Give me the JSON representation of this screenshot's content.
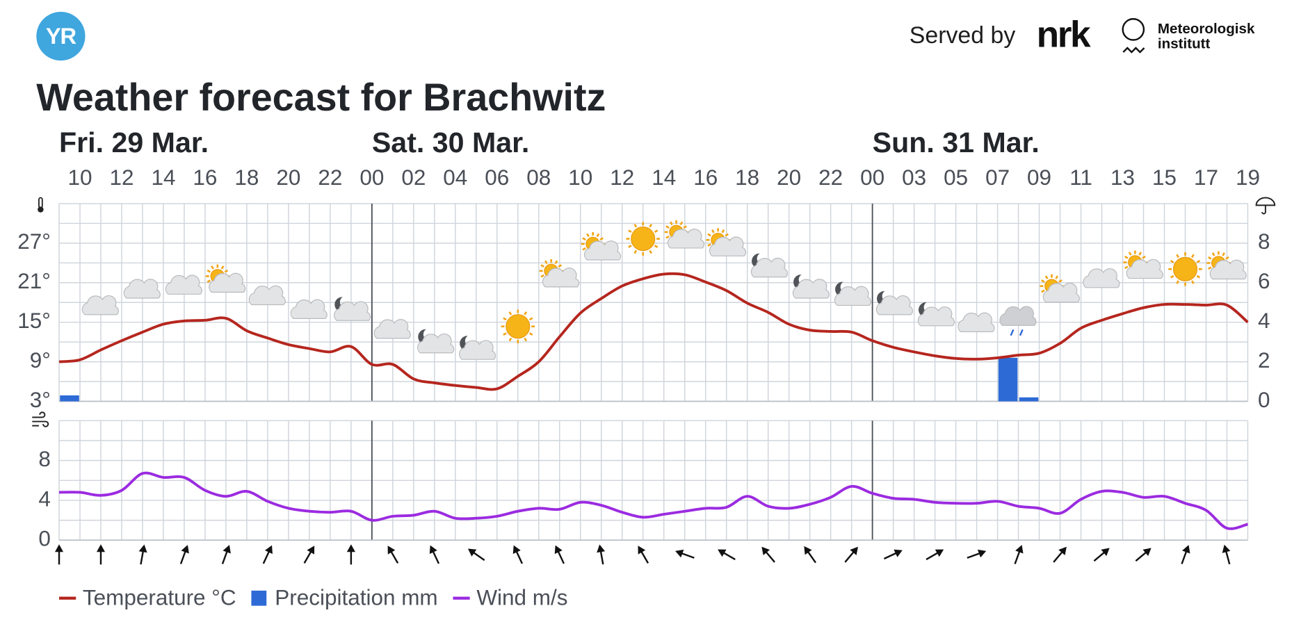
{
  "header": {
    "logo": "YR",
    "served_by": "Served by",
    "nrk": "nrk",
    "met": [
      "Meteorologisk",
      "institutt"
    ]
  },
  "chart_data": [
    {
      "type": "line",
      "title": "Weather forecast for Brachwitz",
      "days": [
        "Fri. 29 Mar.",
        "Sat. 30 Mar.",
        "Sun. 31 Mar."
      ],
      "categories": [
        null,
        "10",
        null,
        "12",
        null,
        "14",
        null,
        "16",
        null,
        "18",
        null,
        "20",
        null,
        "22",
        null,
        "00",
        null,
        "02",
        null,
        "04",
        null,
        "06",
        null,
        "08",
        null,
        "10",
        null,
        "12",
        null,
        "14",
        null,
        "16",
        null,
        "18",
        null,
        "20",
        null,
        "22",
        null,
        "00",
        null,
        "03",
        null,
        "05",
        null,
        "07",
        null,
        "09",
        null,
        "11",
        null,
        "13",
        null,
        "15",
        null,
        "17",
        null,
        "19"
      ],
      "ylim": [
        3,
        33
      ],
      "yticks": [
        {
          "value": 3,
          "label": "3°"
        },
        {
          "value": 9,
          "label": "9°"
        },
        {
          "value": 15,
          "label": "15°"
        },
        {
          "value": 21,
          "label": "21°"
        },
        {
          "value": 27,
          "label": "27°"
        }
      ],
      "minor_grid": [
        6,
        12,
        18,
        24,
        30
      ],
      "y2lim": [
        0,
        10
      ],
      "y2ticks": [
        0,
        2,
        4,
        6,
        8
      ],
      "grid": true,
      "series": [
        {
          "name": "Temperature °C",
          "color": "#b5261e",
          "values": [
            9.0,
            9.3,
            10.8,
            12.2,
            13.5,
            14.7,
            15.2,
            15.3,
            15.6,
            13.7,
            12.6,
            11.6,
            11.0,
            10.5,
            11.3,
            8.6,
            8.6,
            6.4,
            5.8,
            5.4,
            5.1,
            4.9,
            6.8,
            9.0,
            12.8,
            16.4,
            18.6,
            20.5,
            21.6,
            22.3,
            22.2,
            21.1,
            19.8,
            17.9,
            16.5,
            14.7,
            13.8,
            13.6,
            13.5,
            12.2,
            11.2,
            10.5,
            9.9,
            9.5,
            9.4,
            9.6,
            10.0,
            10.3,
            11.8,
            14.1,
            15.3,
            16.3,
            17.2,
            17.7,
            17.7,
            17.6,
            17.6,
            15.0
          ]
        },
        {
          "name": "Precipitation mm",
          "color": "#2d6ad6",
          "type": "bar",
          "axis": "y2",
          "values": [
            0.3,
            0,
            0,
            0,
            0,
            0,
            0,
            0,
            0,
            0,
            0,
            0,
            0,
            0,
            0,
            0,
            0,
            0,
            0,
            0,
            0,
            0,
            0,
            0,
            0,
            0,
            0,
            0,
            0,
            0,
            0,
            0,
            0,
            0,
            0,
            0,
            0,
            0,
            0,
            0,
            0,
            0,
            0,
            0,
            0,
            2.2,
            0.2,
            0,
            0,
            0,
            0,
            0,
            0,
            0,
            0,
            0,
            0,
            0
          ]
        }
      ]
    },
    {
      "type": "line",
      "ylim": [
        0,
        12
      ],
      "yticks": [
        0,
        4,
        8
      ],
      "minor_grid": [
        2,
        6,
        10
      ],
      "grid": true,
      "series": [
        {
          "name": "Wind m/s",
          "color": "#9b2be0",
          "values": [
            4.8,
            4.8,
            4.5,
            5.0,
            6.7,
            6.3,
            6.3,
            5.0,
            4.4,
            4.9,
            3.9,
            3.2,
            2.9,
            2.8,
            2.9,
            2.0,
            2.4,
            2.5,
            2.9,
            2.2,
            2.2,
            2.4,
            2.9,
            3.2,
            3.1,
            3.8,
            3.5,
            2.8,
            2.3,
            2.6,
            2.9,
            3.2,
            3.3,
            4.4,
            3.4,
            3.2,
            3.6,
            4.3,
            5.4,
            4.7,
            4.2,
            4.1,
            3.8,
            3.7,
            3.7,
            3.9,
            3.4,
            3.2,
            2.7,
            4.1,
            4.9,
            4.8,
            4.3,
            4.4,
            3.7,
            3.0,
            1.2,
            1.6
          ]
        }
      ],
      "wind_direction": [
        0,
        null,
        0,
        null,
        10,
        null,
        20,
        null,
        20,
        null,
        25,
        null,
        30,
        null,
        0,
        null,
        -30,
        null,
        -25,
        null,
        -55,
        null,
        -25,
        null,
        -25,
        null,
        -10,
        null,
        -30,
        null,
        -70,
        null,
        -60,
        null,
        -40,
        null,
        -35,
        null,
        40,
        null,
        65,
        null,
        60,
        null,
        70,
        null,
        20,
        null,
        40,
        null,
        50,
        null,
        50,
        null,
        20,
        null,
        -15,
        null
      ]
    }
  ]
}
